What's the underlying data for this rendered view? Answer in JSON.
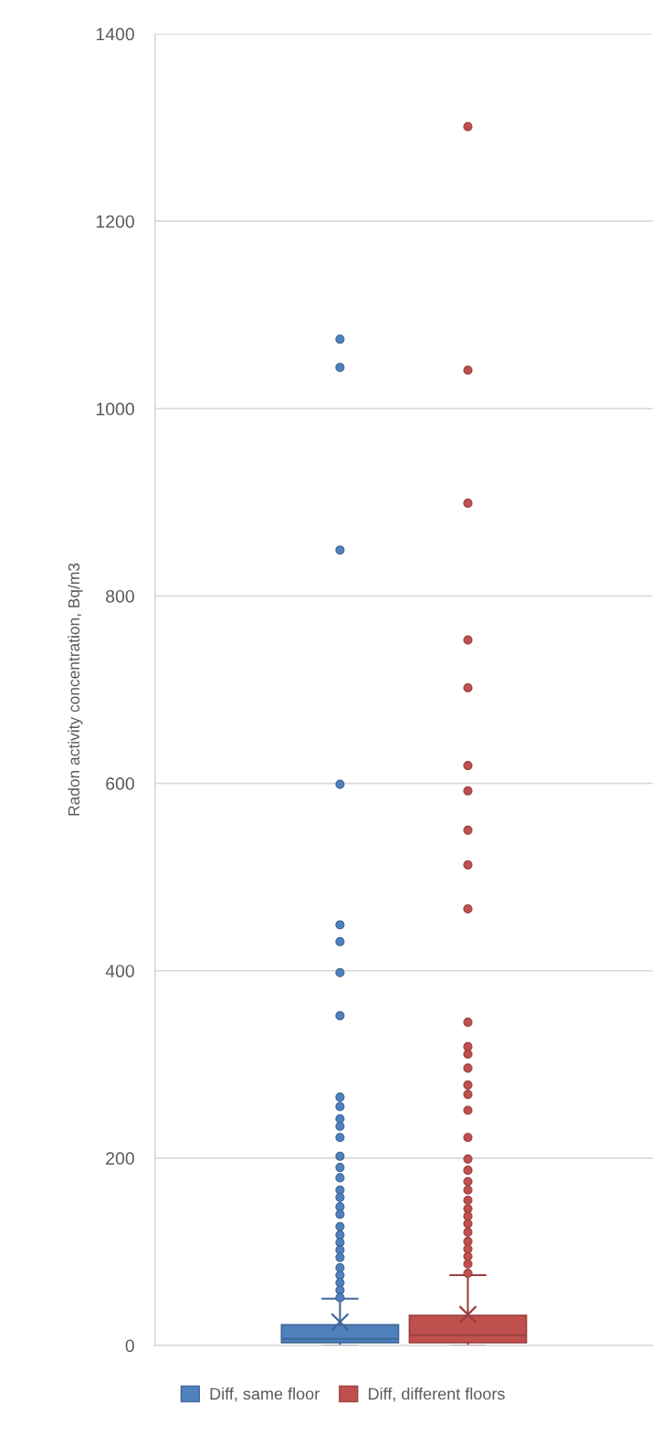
{
  "chart_data": {
    "type": "box",
    "categories": [
      null
    ],
    "ylabel": "Radon activity concentration, Bq/m3",
    "ylim": [
      0,
      1400
    ],
    "yticks": [
      0,
      200,
      400,
      600,
      800,
      1000,
      1200,
      1400
    ],
    "grid": "y",
    "legend": "bottom",
    "tick_labels": "y",
    "series": [
      {
        "name": "Diff, same floor",
        "color": "#4f81bd",
        "boxes": [
          {
            "low": 0,
            "q1": 3,
            "median": 7,
            "q3": 22,
            "high": 50,
            "mean": 25,
            "outliers": [
              1074,
              1044,
              849,
              599,
              449,
              431,
              398,
              352,
              265,
              255,
              242,
              234,
              222,
              202,
              190,
              179,
              166,
              158,
              148,
              140,
              127,
              118,
              110,
              102,
              94,
              83,
              75,
              67,
              59,
              51
            ]
          }
        ]
      },
      {
        "name": "Diff, different floors",
        "color": "#c0504d",
        "boxes": [
          {
            "low": 0,
            "q1": 3,
            "median": 11,
            "q3": 32,
            "high": 75,
            "mean": 33,
            "outliers": [
              1301,
              1041,
              899,
              753,
              702,
              619,
              592,
              550,
              513,
              466,
              345,
              319,
              311,
              296,
              278,
              268,
              251,
              222,
              199,
              187,
              175,
              166,
              155,
              146,
              138,
              130,
              121,
              111,
              103,
              95,
              87,
              77
            ]
          }
        ]
      }
    ]
  }
}
